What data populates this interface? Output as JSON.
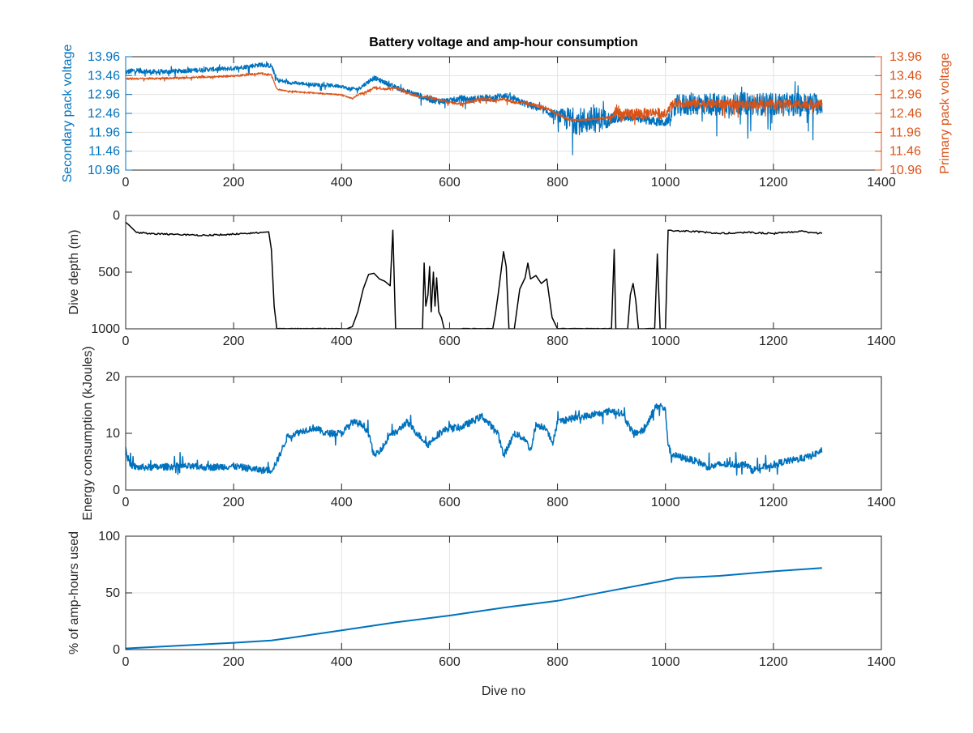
{
  "figure_title": "Battery voltage and amp-hour consumption",
  "colors": {
    "blue": "#0072BD",
    "orange": "#D95319",
    "black": "#000000",
    "grid": "#e3e3e3",
    "axis": "#262626"
  },
  "chart_data": [
    {
      "type": "line",
      "title": "Battery voltage and amp-hour consumption",
      "xlabel": "",
      "ylabel": "Secondary pack voltage",
      "ylabel_right": "Primary pack voltage",
      "xlim": [
        0,
        1400
      ],
      "ylim": [
        10.96,
        13.96
      ],
      "ylim_right": [
        10.96,
        13.96
      ],
      "grid": true,
      "x_ticks": [
        "0",
        "200",
        "400",
        "600",
        "800",
        "1000",
        "1200",
        "1400"
      ],
      "y_ticks": [
        "10.96",
        "11.46",
        "11.96",
        "12.46",
        "12.96",
        "13.46",
        "13.96"
      ],
      "y_ticks_right": [
        "10.96",
        "11.46",
        "11.96",
        "12.46",
        "12.96",
        "13.46",
        "13.96"
      ],
      "series": [
        {
          "axis": "left",
          "color": "#0072BD",
          "x": [
            0,
            20,
            50,
            100,
            150,
            200,
            250,
            270,
            280,
            300,
            350,
            400,
            410,
            430,
            450,
            460,
            480,
            500,
            520,
            540,
            560,
            580,
            600,
            620,
            640,
            660,
            680,
            700,
            720,
            740,
            760,
            780,
            800,
            820,
            840,
            860,
            880,
            900,
            920,
            940,
            960,
            980,
            1000,
            1010,
            1020,
            1040,
            1060,
            1100,
            1150,
            1200,
            1250,
            1290
          ],
          "y": [
            13.55,
            13.6,
            13.55,
            13.58,
            13.62,
            13.65,
            13.75,
            13.72,
            13.35,
            13.28,
            13.22,
            13.18,
            13.12,
            13.1,
            13.3,
            13.4,
            13.28,
            13.15,
            13.05,
            12.95,
            12.85,
            12.78,
            12.8,
            12.85,
            12.82,
            12.88,
            12.85,
            12.95,
            12.82,
            12.72,
            12.62,
            12.5,
            12.4,
            12.3,
            12.25,
            12.28,
            12.3,
            12.3,
            12.32,
            12.35,
            12.3,
            12.25,
            12.2,
            12.4,
            12.65,
            12.7,
            12.72,
            12.7,
            12.72,
            12.7,
            12.7,
            12.72
          ],
          "noise": [
            0.12,
            0.12,
            0.12,
            0.1,
            0.1,
            0.1,
            0.1,
            0.1,
            0.1,
            0.08,
            0.08,
            0.08,
            0.08,
            0.08,
            0.1,
            0.1,
            0.1,
            0.1,
            0.1,
            0.12,
            0.15,
            0.15,
            0.12,
            0.15,
            0.15,
            0.15,
            0.15,
            0.15,
            0.15,
            0.15,
            0.15,
            0.15,
            0.25,
            0.55,
            0.6,
            0.6,
            0.55,
            0.25,
            0.15,
            0.15,
            0.2,
            0.2,
            0.15,
            0.25,
            0.5,
            0.5,
            0.5,
            0.5,
            0.5,
            0.5,
            0.5,
            0.5
          ]
        },
        {
          "axis": "right",
          "color": "#D95319",
          "x": [
            0,
            50,
            100,
            150,
            200,
            250,
            270,
            280,
            300,
            350,
            400,
            420,
            430,
            450,
            460,
            480,
            500,
            520,
            540,
            560,
            580,
            600,
            620,
            640,
            660,
            680,
            700,
            720,
            740,
            760,
            780,
            800,
            820,
            840,
            860,
            880,
            900,
            910,
            920,
            940,
            960,
            980,
            990,
            1000,
            1010,
            1020,
            1040,
            1100,
            1150,
            1200,
            1250,
            1290
          ],
          "y": [
            13.38,
            13.38,
            13.4,
            13.42,
            13.45,
            13.52,
            13.48,
            13.1,
            13.05,
            13.0,
            12.95,
            12.85,
            12.95,
            13.05,
            13.15,
            13.1,
            13.15,
            13.0,
            12.92,
            12.88,
            12.82,
            12.75,
            12.72,
            12.78,
            12.85,
            12.8,
            12.85,
            12.75,
            12.72,
            12.68,
            12.6,
            12.45,
            12.3,
            12.28,
            12.3,
            12.32,
            12.35,
            12.55,
            12.4,
            12.45,
            12.45,
            12.5,
            12.45,
            12.4,
            12.65,
            12.75,
            12.72,
            12.72,
            12.68,
            12.7,
            12.7,
            12.72
          ],
          "noise": [
            0.04,
            0.04,
            0.04,
            0.04,
            0.04,
            0.04,
            0.04,
            0.03,
            0.03,
            0.03,
            0.03,
            0.03,
            0.04,
            0.04,
            0.04,
            0.04,
            0.05,
            0.05,
            0.05,
            0.06,
            0.06,
            0.06,
            0.06,
            0.07,
            0.07,
            0.07,
            0.07,
            0.07,
            0.07,
            0.07,
            0.07,
            0.07,
            0.05,
            0.05,
            0.05,
            0.05,
            0.08,
            0.3,
            0.25,
            0.3,
            0.25,
            0.2,
            0.25,
            0.1,
            0.2,
            0.2,
            0.2,
            0.2,
            0.2,
            0.2,
            0.2,
            0.2
          ]
        }
      ]
    },
    {
      "type": "line",
      "title": "",
      "xlabel": "",
      "ylabel": "Dive depth (m)",
      "xlim": [
        0,
        1400
      ],
      "ylim": [
        1000,
        0
      ],
      "grid": false,
      "x_ticks": [
        "0",
        "200",
        "400",
        "600",
        "800",
        "1000",
        "1200",
        "1400"
      ],
      "y_ticks": [
        "0",
        "500",
        "1000"
      ],
      "series": [
        {
          "color": "#000000",
          "x": [
            0,
            5,
            20,
            50,
            100,
            150,
            200,
            250,
            265,
            270,
            275,
            280,
            300,
            350,
            400,
            410,
            420,
            430,
            440,
            450,
            460,
            470,
            480,
            490,
            495,
            500,
            505,
            510,
            520,
            530,
            540,
            550,
            553,
            556,
            560,
            563,
            566,
            570,
            573,
            576,
            580,
            585,
            590,
            600,
            610,
            620,
            640,
            660,
            680,
            685,
            690,
            700,
            705,
            710,
            715,
            720,
            730,
            740,
            745,
            750,
            760,
            770,
            780,
            790,
            800,
            820,
            850,
            880,
            900,
            905,
            908,
            912,
            920,
            930,
            935,
            940,
            945,
            950,
            960,
            980,
            985,
            990,
            995,
            1000,
            1005,
            1010,
            1015,
            1020,
            1050,
            1100,
            1150,
            1200,
            1250,
            1290
          ],
          "y": [
            60,
            80,
            150,
            160,
            170,
            175,
            165,
            150,
            145,
            300,
            800,
            1000,
            1000,
            1000,
            1000,
            1000,
            980,
            850,
            650,
            520,
            510,
            560,
            580,
            620,
            130,
            1000,
            1000,
            1000,
            1000,
            1000,
            1000,
            1000,
            420,
            800,
            700,
            450,
            850,
            500,
            800,
            550,
            850,
            900,
            1000,
            1000,
            1000,
            1000,
            1000,
            1000,
            1000,
            870,
            700,
            320,
            450,
            1000,
            1000,
            1000,
            650,
            550,
            420,
            560,
            530,
            600,
            560,
            900,
            1000,
            1000,
            1000,
            1000,
            1000,
            300,
            1000,
            1000,
            1000,
            1000,
            700,
            600,
            750,
            1000,
            1000,
            1000,
            340,
            1000,
            1000,
            1000,
            130,
            130,
            140,
            135,
            140,
            160,
            150,
            160,
            140,
            160
          ]
        }
      ]
    },
    {
      "type": "line",
      "title": "",
      "xlabel": "",
      "ylabel": "Energy consumption (kJoules)",
      "xlim": [
        0,
        1400
      ],
      "ylim": [
        0,
        20
      ],
      "grid": false,
      "x_ticks": [
        "0",
        "200",
        "400",
        "600",
        "800",
        "1000",
        "1200",
        "1400"
      ],
      "y_ticks": [
        "0",
        "10",
        "20"
      ],
      "series": [
        {
          "color": "#0072BD",
          "x": [
            0,
            3,
            8,
            20,
            50,
            100,
            150,
            200,
            250,
            270,
            280,
            300,
            330,
            350,
            370,
            400,
            420,
            440,
            450,
            460,
            480,
            490,
            500,
            520,
            540,
            560,
            580,
            600,
            620,
            640,
            660,
            680,
            690,
            700,
            710,
            720,
            740,
            750,
            760,
            780,
            790,
            800,
            820,
            850,
            880,
            900,
            920,
            940,
            960,
            980,
            990,
            1000,
            1005,
            1010,
            1020,
            1040,
            1060,
            1080,
            1100,
            1120,
            1150,
            1160,
            1180,
            1200,
            1220,
            1250,
            1270,
            1290
          ],
          "y": [
            8,
            6,
            4.5,
            4,
            4,
            4.2,
            4,
            4.2,
            3.5,
            3.5,
            5,
            9.5,
            10.5,
            11,
            10,
            10,
            12,
            11.5,
            10,
            6,
            8,
            10,
            10,
            12,
            10,
            8,
            10,
            11,
            11,
            12,
            13,
            11,
            10,
            6,
            8,
            10,
            9,
            7,
            11.5,
            11,
            8,
            12,
            12.5,
            13,
            13.5,
            14,
            13.5,
            10,
            10.5,
            14.5,
            15,
            14,
            8,
            6.5,
            6,
            5.5,
            5,
            4,
            4.5,
            4.5,
            4.5,
            3.5,
            4,
            4.5,
            5,
            5.5,
            6,
            7
          ]
        }
      ]
    },
    {
      "type": "line",
      "title": "",
      "xlabel": "Dive no",
      "ylabel": "% of amp-hours used",
      "xlim": [
        0,
        1400
      ],
      "ylim": [
        0,
        100
      ],
      "grid": true,
      "x_ticks": [
        "0",
        "200",
        "400",
        "600",
        "800",
        "1000",
        "1200",
        "1400"
      ],
      "y_ticks": [
        "0",
        "50",
        "100"
      ],
      "series": [
        {
          "color": "#0072BD",
          "x": [
            0,
            100,
            200,
            270,
            300,
            400,
            500,
            600,
            700,
            800,
            900,
            1000,
            1020,
            1100,
            1200,
            1290
          ],
          "y": [
            1,
            3.5,
            6,
            8,
            10,
            17,
            24,
            30,
            37,
            43,
            52,
            61,
            63,
            65,
            69,
            72
          ]
        }
      ]
    }
  ]
}
